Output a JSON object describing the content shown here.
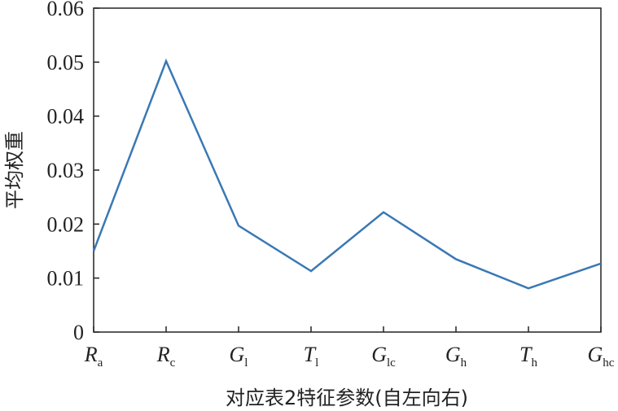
{
  "chart_data": {
    "type": "line",
    "y_label": "平均权重",
    "x_label": "对应表2特征参数(自左向右)",
    "categories": [
      "Ra",
      "Rc",
      "Gl",
      "Tl",
      "Glc",
      "Gh",
      "Th",
      "Ghc"
    ],
    "series": [
      {
        "color": "#3a78b5",
        "values": [
          0.015,
          0.0502,
          0.0197,
          0.0113,
          0.0222,
          0.0135,
          0.0081,
          0.0127
        ]
      }
    ],
    "ylim": [
      0,
      0.06
    ],
    "yticks": [
      0,
      0.01,
      0.02,
      0.03,
      0.04,
      0.05,
      0.06
    ]
  }
}
